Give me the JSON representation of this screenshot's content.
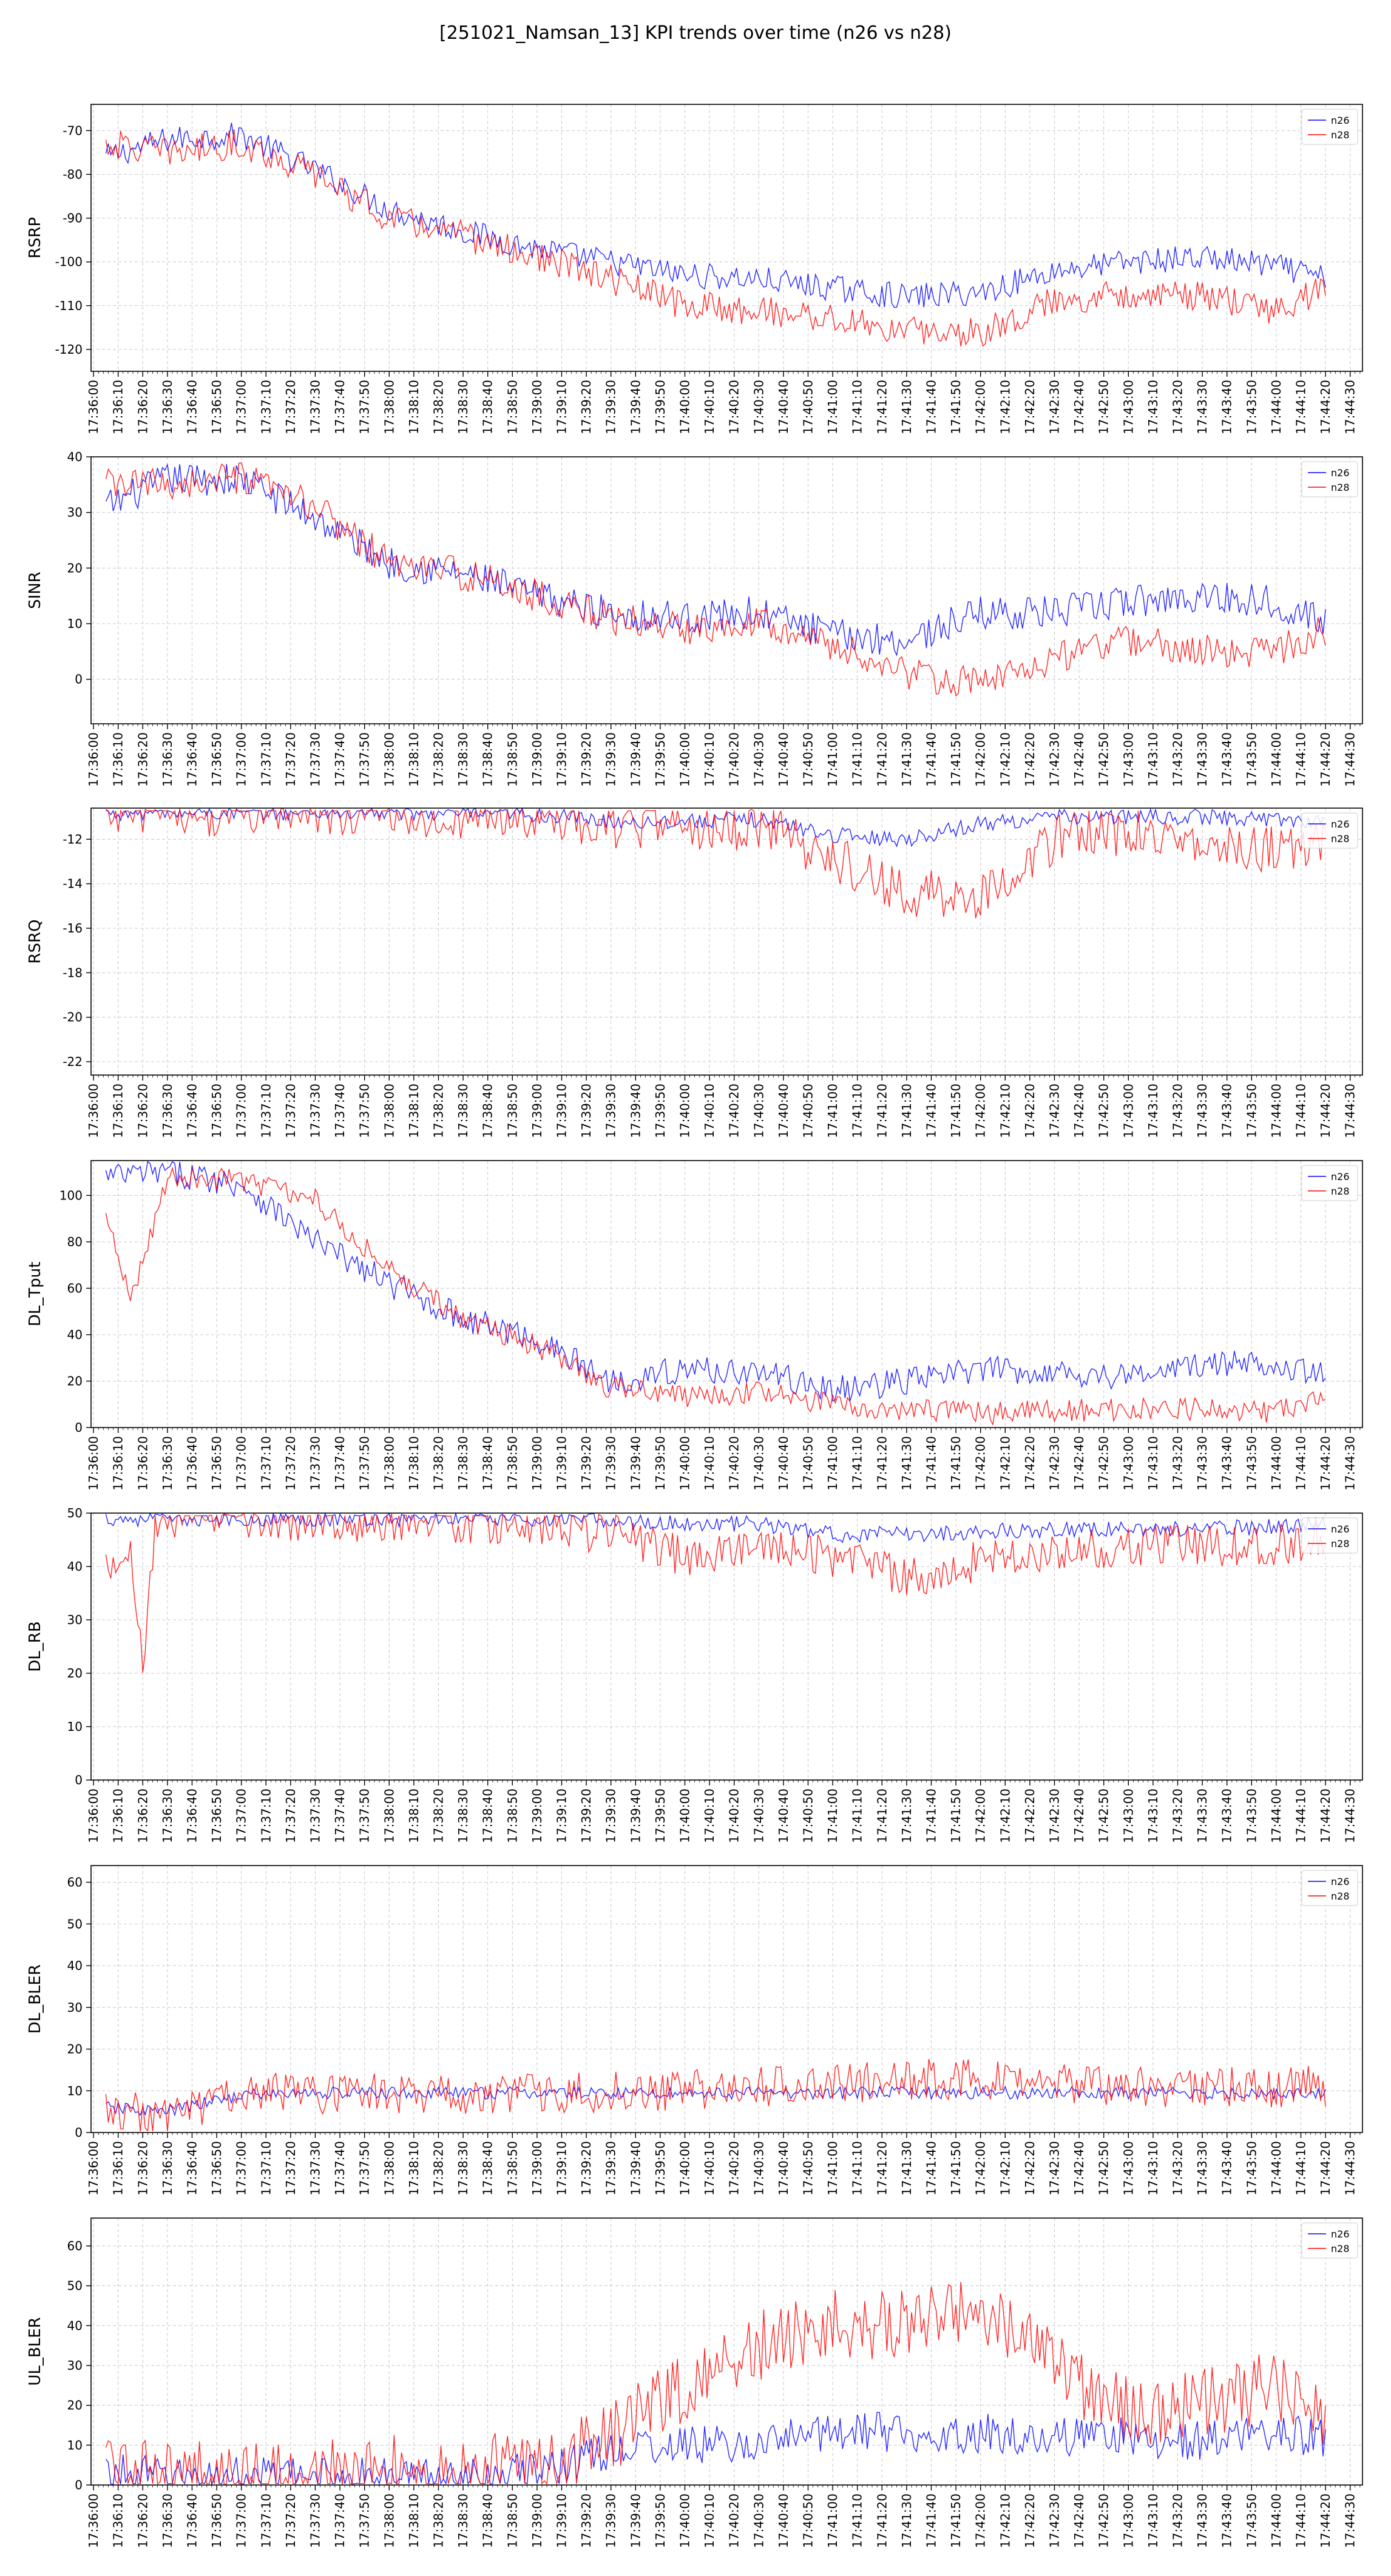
{
  "figure": {
    "title": "[251021_Namsan_13] KPI trends over time (n26 vs n28)"
  },
  "colors": {
    "n26": "#0000ff",
    "n28": "#ff0000",
    "grid": "#c8c8c8",
    "axes": "#000000"
  },
  "legend": {
    "placement": "upper-right",
    "entries": [
      "n26",
      "n28"
    ]
  },
  "chart_data": [
    {
      "type": "line",
      "ylabel": "RSRP",
      "ylim": [
        -125,
        -64
      ],
      "yticks": [
        -70,
        -80,
        -90,
        -100,
        -110,
        -120
      ],
      "xlim": [
        "17:35:59",
        "17:44:35"
      ],
      "xticks": [
        "17:36:00",
        "17:36:10",
        "17:36:20",
        "17:36:30",
        "17:36:40",
        "17:36:50",
        "17:37:00",
        "17:37:10",
        "17:37:20",
        "17:37:30",
        "17:37:40",
        "17:37:50",
        "17:38:00",
        "17:38:10",
        "17:38:20",
        "17:38:30",
        "17:38:40",
        "17:38:50",
        "17:39:00",
        "17:39:10",
        "17:39:20",
        "17:39:30",
        "17:39:40",
        "17:39:50",
        "17:40:00",
        "17:40:10",
        "17:40:20",
        "17:40:30",
        "17:40:40",
        "17:40:50",
        "17:41:00",
        "17:41:10",
        "17:41:20",
        "17:41:30",
        "17:41:40",
        "17:41:50",
        "17:42:00",
        "17:42:10",
        "17:42:20",
        "17:42:30",
        "17:42:40",
        "17:42:50",
        "17:43:00",
        "17:43:10",
        "17:43:20",
        "17:43:30",
        "17:43:40",
        "17:43:50",
        "17:44:00",
        "17:44:10",
        "17:44:20",
        "17:44:30"
      ],
      "grid": true,
      "legend": [
        "n26",
        "n28"
      ],
      "series": [
        {
          "name": "n26",
          "x": [
            "17:36:05",
            "17:36:30",
            "17:37:00",
            "17:37:30",
            "17:38:00",
            "17:38:30",
            "17:39:00",
            "17:39:30",
            "17:40:00",
            "17:40:30",
            "17:41:00",
            "17:41:30",
            "17:42:00",
            "17:42:30",
            "17:43:00",
            "17:43:30",
            "17:44:00",
            "17:44:20"
          ],
          "y": [
            -76,
            -72,
            -71,
            -79,
            -88,
            -93,
            -97,
            -100,
            -103,
            -104,
            -106,
            -108,
            -107,
            -102,
            -100,
            -99,
            -101,
            -104
          ],
          "jitter": 3
        },
        {
          "name": "n28",
          "x": [
            "17:36:05",
            "17:36:30",
            "17:37:00",
            "17:37:30",
            "17:38:00",
            "17:38:30",
            "17:39:00",
            "17:39:30",
            "17:40:00",
            "17:40:30",
            "17:41:00",
            "17:41:30",
            "17:42:00",
            "17:42:30",
            "17:43:00",
            "17:43:30",
            "17:44:00",
            "17:44:20"
          ],
          "y": [
            -73,
            -75,
            -73,
            -80,
            -90,
            -94,
            -99,
            -104,
            -110,
            -111,
            -113,
            -116,
            -116,
            -109,
            -107,
            -108,
            -111,
            -106
          ],
          "jitter": 3.5
        }
      ]
    },
    {
      "type": "line",
      "ylabel": "SINR",
      "ylim": [
        -8,
        40
      ],
      "yticks": [
        0,
        10,
        20,
        30,
        40
      ],
      "xlim": [
        "17:35:59",
        "17:44:35"
      ],
      "grid": true,
      "legend": [
        "n26",
        "n28"
      ],
      "series": [
        {
          "name": "n26",
          "x": [
            "17:36:05",
            "17:36:30",
            "17:37:00",
            "17:37:30",
            "17:38:00",
            "17:38:30",
            "17:39:00",
            "17:39:30",
            "17:40:00",
            "17:40:30",
            "17:41:00",
            "17:41:30",
            "17:42:00",
            "17:42:30",
            "17:43:00",
            "17:43:30",
            "17:44:00",
            "17:44:20"
          ],
          "y": [
            31,
            36,
            36,
            29,
            21,
            19,
            15,
            12,
            11,
            12,
            8,
            7,
            12,
            12,
            14,
            15,
            14,
            10
          ],
          "jitter": 3
        },
        {
          "name": "n28",
          "x": [
            "17:36:05",
            "17:36:30",
            "17:37:00",
            "17:37:30",
            "17:38:00",
            "17:38:30",
            "17:39:00",
            "17:39:30",
            "17:40:00",
            "17:40:30",
            "17:41:00",
            "17:41:30",
            "17:42:00",
            "17:42:30",
            "17:43:00",
            "17:43:30",
            "17:44:00",
            "17:44:20"
          ],
          "y": [
            35,
            35,
            36,
            31,
            21,
            19,
            15,
            11,
            9,
            11,
            6,
            1,
            -1,
            4,
            7,
            5,
            5,
            9
          ],
          "jitter": 3
        }
      ]
    },
    {
      "type": "line",
      "ylabel": "RSRQ",
      "ylim": [
        -22.6,
        -10.6
      ],
      "yticks": [
        -12,
        -14,
        -16,
        -18,
        -20,
        -22
      ],
      "xlim": [
        "17:35:59",
        "17:44:35"
      ],
      "grid": true,
      "legend": [
        "n26",
        "n28"
      ],
      "series": [
        {
          "name": "n26",
          "x": [
            "17:36:05",
            "17:37:00",
            "17:38:00",
            "17:39:00",
            "17:39:30",
            "17:40:00",
            "17:40:30",
            "17:41:00",
            "17:41:30",
            "17:42:00",
            "17:42:30",
            "17:43:00",
            "17:43:30",
            "17:44:00",
            "17:44:20"
          ],
          "y": [
            -10.8,
            -10.8,
            -10.8,
            -10.9,
            -11.2,
            -11.2,
            -11.1,
            -11.8,
            -12.0,
            -11.3,
            -11.0,
            -11.0,
            -11.0,
            -11.1,
            -11.2
          ],
          "jitter": 0.35
        },
        {
          "name": "n28",
          "x": [
            "17:36:05",
            "17:37:00",
            "17:38:00",
            "17:39:00",
            "17:39:30",
            "17:40:00",
            "17:40:30",
            "17:41:00",
            "17:41:30",
            "17:42:00",
            "17:42:30",
            "17:43:00",
            "17:43:30",
            "17:44:00",
            "17:44:20"
          ],
          "y": [
            -10.8,
            -10.8,
            -10.8,
            -11.0,
            -11.3,
            -11.5,
            -11.4,
            -12.8,
            -14.5,
            -14.5,
            -12.0,
            -11.6,
            -12.0,
            -12.5,
            -12.2
          ],
          "jitter": 1.1
        }
      ]
    },
    {
      "type": "line",
      "ylabel": "DL_Tput",
      "ylim": [
        0,
        115
      ],
      "yticks": [
        0,
        20,
        40,
        60,
        80,
        100
      ],
      "xlim": [
        "17:35:59",
        "17:44:35"
      ],
      "grid": true,
      "legend": [
        "n26",
        "n28"
      ],
      "series": [
        {
          "name": "n26",
          "x": [
            "17:36:05",
            "17:36:30",
            "17:37:00",
            "17:37:30",
            "17:38:00",
            "17:38:30",
            "17:39:00",
            "17:39:30",
            "17:40:00",
            "17:40:30",
            "17:41:00",
            "17:41:30",
            "17:42:00",
            "17:42:30",
            "17:43:00",
            "17:43:30",
            "17:44:00",
            "17:44:20"
          ],
          "y": [
            108,
            110,
            105,
            80,
            62,
            47,
            38,
            20,
            25,
            24,
            16,
            20,
            25,
            24,
            22,
            27,
            28,
            22
          ],
          "jitter": 6
        },
        {
          "name": "n28",
          "x": [
            "17:36:05",
            "17:36:15",
            "17:36:30",
            "17:37:00",
            "17:37:30",
            "17:38:00",
            "17:38:30",
            "17:39:00",
            "17:39:30",
            "17:40:00",
            "17:40:30",
            "17:41:00",
            "17:41:30",
            "17:42:00",
            "17:42:30",
            "17:43:00",
            "17:43:30",
            "17:44:00",
            "17:44:20"
          ],
          "y": [
            90,
            55,
            108,
            107,
            98,
            68,
            47,
            35,
            17,
            13,
            15,
            10,
            8,
            6,
            7,
            8,
            8,
            7,
            12
          ],
          "jitter": 5
        }
      ]
    },
    {
      "type": "line",
      "ylabel": "DL_RB",
      "ylim": [
        0,
        50
      ],
      "yticks": [
        0,
        10,
        20,
        30,
        40,
        50
      ],
      "xlim": [
        "17:35:59",
        "17:44:35"
      ],
      "grid": true,
      "legend": [
        "n26",
        "n28"
      ],
      "series": [
        {
          "name": "n26",
          "x": [
            "17:36:05",
            "17:37:00",
            "17:38:00",
            "17:39:00",
            "17:39:30",
            "17:40:00",
            "17:40:30",
            "17:41:00",
            "17:41:30",
            "17:42:00",
            "17:42:30",
            "17:43:00",
            "17:43:30",
            "17:44:00",
            "17:44:20"
          ],
          "y": [
            49,
            49,
            49,
            49,
            48.5,
            48,
            48,
            46,
            46,
            46.5,
            47,
            47,
            47,
            47.5,
            48
          ],
          "jitter": 1.5
        },
        {
          "name": "n28",
          "x": [
            "17:36:05",
            "17:36:15",
            "17:36:20",
            "17:36:25",
            "17:37:00",
            "17:38:00",
            "17:39:00",
            "17:39:30",
            "17:40:00",
            "17:40:30",
            "17:41:00",
            "17:41:30",
            "17:42:00",
            "17:42:30",
            "17:43:00",
            "17:43:30",
            "17:44:00",
            "17:44:20"
          ],
          "y": [
            40,
            45,
            20,
            49,
            49,
            48.5,
            48,
            46,
            42,
            43,
            42,
            38,
            41,
            42,
            44,
            44,
            44,
            46
          ],
          "jitter": 4
        }
      ]
    },
    {
      "type": "line",
      "ylabel": "DL_BLER",
      "ylim": [
        0,
        64
      ],
      "yticks": [
        0,
        10,
        20,
        30,
        40,
        50,
        60
      ],
      "xlim": [
        "17:35:59",
        "17:44:35"
      ],
      "grid": true,
      "legend": [
        "n26",
        "n28"
      ],
      "series": [
        {
          "name": "n26",
          "x": [
            "17:36:05",
            "17:36:30",
            "17:37:00",
            "17:37:30",
            "17:38:00",
            "17:39:00",
            "17:40:00",
            "17:41:00",
            "17:42:00",
            "17:43:00",
            "17:44:00",
            "17:44:20"
          ],
          "y": [
            6,
            5,
            9,
            9.5,
            9.5,
            9.5,
            9.5,
            9.5,
            9.5,
            9.5,
            9.5,
            9
          ],
          "jitter": 1.5
        },
        {
          "name": "n28",
          "x": [
            "17:36:05",
            "17:36:30",
            "17:37:00",
            "17:37:30",
            "17:38:00",
            "17:39:00",
            "17:40:00",
            "17:41:00",
            "17:42:00",
            "17:43:00",
            "17:44:00",
            "17:44:20"
          ],
          "y": [
            6,
            4,
            9,
            9.5,
            9.5,
            9.5,
            10,
            12,
            13,
            11,
            11,
            11
          ],
          "jitter": 5
        }
      ]
    },
    {
      "type": "line",
      "ylabel": "UL_BLER",
      "ylim": [
        0,
        67
      ],
      "yticks": [
        0,
        10,
        20,
        30,
        40,
        50,
        60
      ],
      "xlim": [
        "17:35:59",
        "17:44:35"
      ],
      "grid": true,
      "legend": [
        "n26",
        "n28"
      ],
      "series": [
        {
          "name": "n26",
          "x": [
            "17:36:05",
            "17:36:30",
            "17:37:00",
            "17:37:30",
            "17:38:00",
            "17:39:00",
            "17:39:30",
            "17:40:00",
            "17:40:30",
            "17:41:00",
            "17:41:30",
            "17:42:00",
            "17:42:30",
            "17:43:00",
            "17:43:30",
            "17:44:00",
            "17:44:20"
          ],
          "y": [
            3,
            2,
            2,
            2,
            2,
            3,
            9,
            10,
            10,
            14,
            13,
            13,
            12,
            12,
            11,
            13,
            12
          ],
          "jitter": 5
        },
        {
          "name": "n28",
          "x": [
            "17:36:05",
            "17:36:30",
            "17:37:00",
            "17:37:30",
            "17:38:00",
            "17:39:00",
            "17:39:30",
            "17:40:00",
            "17:40:30",
            "17:41:00",
            "17:41:30",
            "17:42:00",
            "17:42:30",
            "17:43:00",
            "17:43:30",
            "17:44:00",
            "17:44:20"
          ],
          "y": [
            3,
            2,
            2,
            2,
            4,
            4,
            12,
            25,
            35,
            40,
            40,
            45,
            30,
            18,
            20,
            25,
            15
          ],
          "jitter": 9
        }
      ]
    }
  ]
}
